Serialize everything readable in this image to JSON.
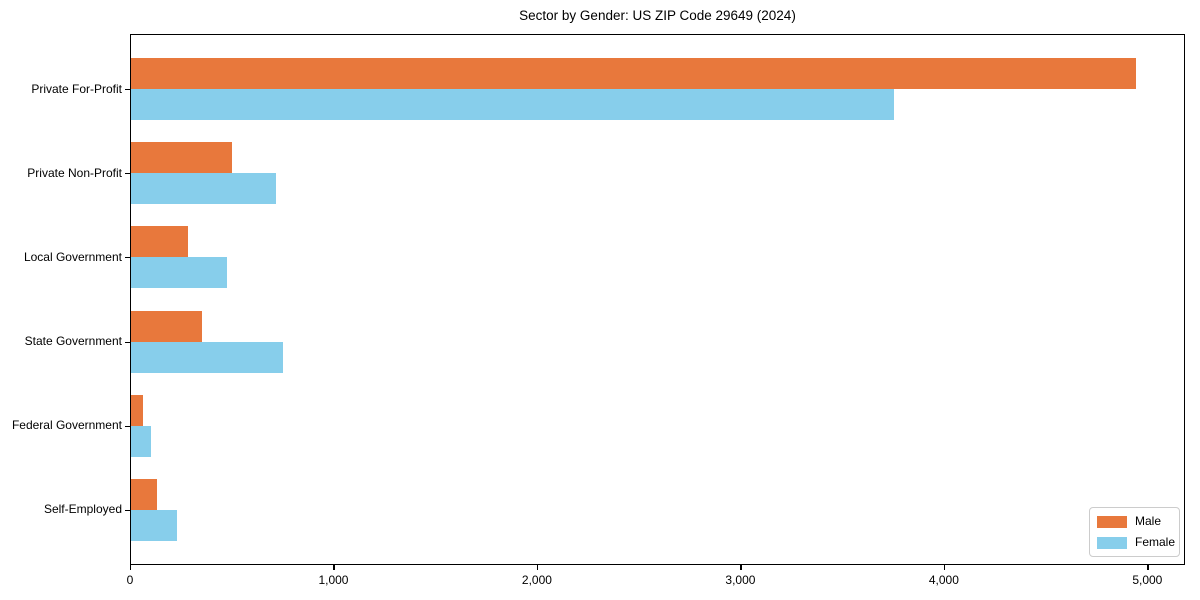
{
  "figure": {
    "title": "Sector by Gender: US ZIP Code 29649 (2024)"
  },
  "chart_data": {
    "type": "bar",
    "orientation": "horizontal",
    "title": "Sector by Gender: US ZIP Code 29649 (2024)",
    "categories": [
      "Private For-Profit",
      "Private Non-Profit",
      "Local Government",
      "State Government",
      "Federal Government",
      "Self-Employed"
    ],
    "series": [
      {
        "name": "Male",
        "color": "#e8783c",
        "values": [
          4940,
          495,
          280,
          350,
          60,
          130
        ]
      },
      {
        "name": "Female",
        "color": "#87ceeb",
        "values": [
          3750,
          715,
          470,
          745,
          100,
          225
        ]
      }
    ],
    "xlabel": "",
    "ylabel": "",
    "xlim": [
      0,
      5185
    ],
    "xticks": [
      0,
      1000,
      2000,
      3000,
      4000,
      5000
    ],
    "xtick_labels": [
      "0",
      "1,000",
      "2,000",
      "3,000",
      "4,000",
      "5,000"
    ],
    "grid": false,
    "legend": {
      "position": "lower right",
      "entries": [
        "Male",
        "Female"
      ]
    },
    "axis_color": "#000000",
    "background": "#ffffff"
  }
}
